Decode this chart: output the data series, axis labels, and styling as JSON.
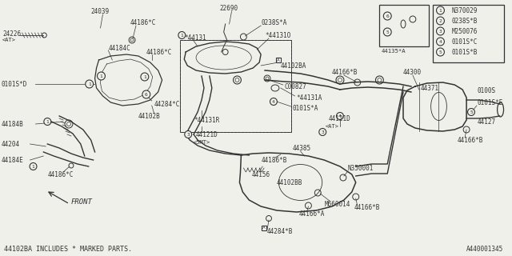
{
  "bg_color": "#f0f0eb",
  "line_color": "#333333",
  "white": "#ffffff",
  "footnote": "44102BA INCLUDES * MARKED PARTS.",
  "diagram_id": "A440001345",
  "legend_items": [
    {
      "num": "1",
      "label": "N370029"
    },
    {
      "num": "2",
      "label": "0238S*B"
    },
    {
      "num": "3",
      "label": "M250076"
    },
    {
      "num": "4",
      "label": "0101S*C"
    },
    {
      "num": "5",
      "label": "0101S*B"
    }
  ],
  "detail_box_label": "44135*A",
  "front_text": "FRONT"
}
